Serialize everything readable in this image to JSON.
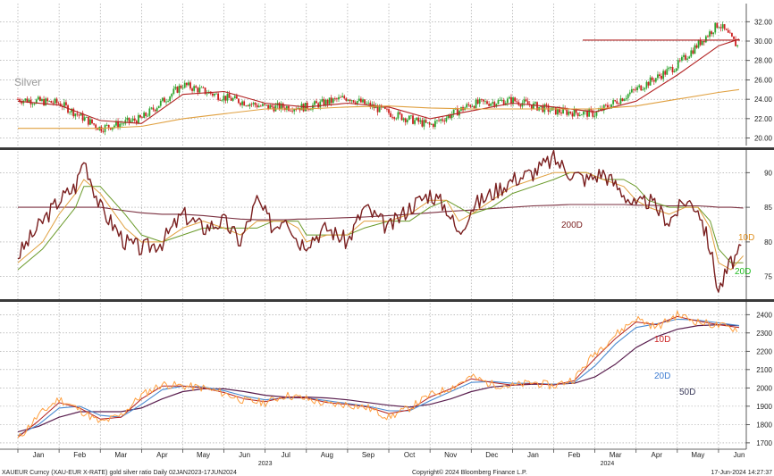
{
  "footer": {
    "left": "XAUEUR Curncy (XAU-EUR X-RATE) gold silver ratio  Daily 02JAN2023-17JUN2024",
    "center": "Copyright© 2024 Bloomberg Finance L.P.",
    "right": "17-Jun-2024 14:27:37"
  },
  "x_axis": {
    "months": [
      "Jan",
      "Feb",
      "Mar",
      "Apr",
      "May",
      "Jun",
      "Jul",
      "Aug",
      "Sep",
      "Oct",
      "Nov",
      "Dec",
      "Jan",
      "Feb",
      "Mar",
      "Apr",
      "May",
      "Jun"
    ],
    "years": [
      "2023",
      "2024"
    ]
  },
  "chart_data": [
    {
      "type": "candlestick",
      "panel": "top",
      "title": "Silver",
      "ylim": [
        19.5,
        33.5
      ],
      "y_ticks": [
        20,
        22,
        24,
        26,
        28,
        30,
        32
      ],
      "y_tick_labels": [
        "20.00",
        "22.00",
        "24.00",
        "26.00",
        "28.00",
        "30.00",
        "32.00"
      ],
      "x_months": [
        0,
        1,
        2,
        3,
        4,
        5,
        6,
        7,
        8,
        9,
        10,
        11,
        12,
        13,
        14,
        15,
        16,
        17,
        17.5
      ],
      "close": [
        24.0,
        23.6,
        21.0,
        22.0,
        25.5,
        24.2,
        23.2,
        23.2,
        24.2,
        22.6,
        21.3,
        23.5,
        23.9,
        22.8,
        22.5,
        25.0,
        27.5,
        31.8,
        29.3
      ],
      "horizontal_line": 30.1,
      "series": [
        {
          "values": [
            23.8,
            23.4,
            21.8,
            21.5,
            24.5,
            24.8,
            23.6,
            23.2,
            23.6,
            23.2,
            22.0,
            22.8,
            23.6,
            23.2,
            22.7,
            23.8,
            26.5,
            29.5,
            30.2
          ]
        },
        {
          "values": [
            21.0,
            21.0,
            21.0,
            21.2,
            22.0,
            22.5,
            23.0,
            23.0,
            23.2,
            23.3,
            23.1,
            23.0,
            23.0,
            23.0,
            23.0,
            23.3,
            24.0,
            24.7,
            25.0
          ]
        }
      ]
    },
    {
      "type": "line",
      "panel": "middle",
      "ylim": [
        72,
        93
      ],
      "y_ticks": [
        75,
        80,
        85,
        90
      ],
      "x_months": [
        0,
        0.6,
        1.0,
        1.4,
        1.6,
        2.0,
        2.6,
        3.0,
        3.5,
        4.0,
        4.5,
        5.0,
        5.4,
        5.8,
        6.2,
        6.5,
        6.8,
        7.0,
        7.5,
        8.0,
        8.4,
        9.0,
        9.5,
        10.0,
        10.4,
        10.7,
        11.0,
        11.5,
        12.0,
        12.5,
        13.0,
        13.4,
        13.8,
        14.2,
        14.7,
        15.0,
        15.3,
        15.8,
        16.2,
        16.5,
        16.8,
        17.0,
        17.3,
        17.6
      ],
      "ratio": [
        78,
        83,
        86,
        88,
        92,
        85,
        80,
        79,
        80,
        84,
        82,
        83,
        80,
        86,
        82,
        84,
        80,
        80,
        82,
        80,
        85,
        82,
        85,
        87,
        85,
        81,
        85,
        87,
        89,
        90,
        92,
        90,
        89,
        90,
        87,
        85,
        86,
        83,
        86,
        85,
        79,
        73,
        77,
        79
      ],
      "annotations": [
        "200D",
        "10D",
        "20D"
      ],
      "series": [
        {
          "name": "200D",
          "values": [
            85,
            85,
            85,
            85,
            85,
            85,
            84.5,
            84.2,
            84,
            84,
            83.8,
            83.5,
            83.3,
            83.2,
            83.2,
            83.2,
            83.3,
            83.3,
            83.4,
            83.5,
            83.6,
            83.8,
            84,
            84.2,
            84.4,
            84.5,
            84.6,
            84.8,
            85,
            85.2,
            85.3,
            85.4,
            85.4,
            85.4,
            85.4,
            85.3,
            85.3,
            85.2,
            85.2,
            85.2,
            85.1,
            85.0,
            85.0,
            84.9
          ]
        },
        {
          "name": "10D",
          "values": [
            77,
            80,
            84,
            87,
            89,
            87,
            82,
            80,
            80,
            82,
            83,
            82,
            81,
            83,
            83,
            83,
            82,
            80,
            81,
            81,
            83,
            83,
            84,
            86,
            86,
            83,
            84,
            86,
            88,
            89,
            90,
            90,
            90,
            89,
            88,
            86,
            85,
            84,
            85,
            85,
            82,
            77,
            76,
            78
          ]
        },
        {
          "name": "20D",
          "values": [
            76,
            79,
            82,
            85,
            88,
            88,
            84,
            81,
            80,
            81,
            82,
            82,
            82,
            82,
            83,
            83,
            83,
            81,
            81,
            81,
            82,
            83,
            83,
            85,
            86,
            85,
            84,
            85,
            87,
            88,
            89,
            90,
            90,
            89,
            89,
            88,
            86,
            85,
            85,
            85,
            83,
            79,
            77,
            77
          ]
        }
      ]
    },
    {
      "type": "line",
      "panel": "bottom",
      "ylim": [
        1680,
        2460
      ],
      "y_ticks": [
        1700,
        1800,
        1900,
        2000,
        2100,
        2200,
        2300,
        2400
      ],
      "x_months": [
        0,
        0.5,
        1.0,
        1.5,
        2.0,
        2.5,
        3.0,
        3.5,
        4.0,
        4.5,
        5.0,
        5.5,
        6.0,
        6.5,
        7.0,
        7.5,
        8.0,
        8.5,
        9.0,
        9.5,
        10.0,
        10.5,
        11.0,
        11.5,
        12.0,
        12.5,
        13.0,
        13.5,
        14.0,
        14.5,
        15.0,
        15.5,
        16.0,
        16.5,
        17.0,
        17.5
      ],
      "price": [
        1720,
        1850,
        1940,
        1880,
        1810,
        1850,
        1960,
        2020,
        2010,
        2000,
        1970,
        1930,
        1920,
        1960,
        1940,
        1910,
        1910,
        1890,
        1840,
        1890,
        1960,
        2000,
        2060,
        2020,
        2010,
        2030,
        2010,
        2050,
        2190,
        2290,
        2380,
        2330,
        2400,
        2360,
        2340,
        2320
      ],
      "annotations": [
        "10D",
        "20D",
        "50D"
      ],
      "series": [
        {
          "name": "10D",
          "values": [
            1730,
            1820,
            1920,
            1890,
            1830,
            1840,
            1940,
            2010,
            2010,
            2000,
            1975,
            1940,
            1925,
            1950,
            1945,
            1920,
            1910,
            1895,
            1860,
            1880,
            1950,
            1995,
            2050,
            2030,
            2015,
            2025,
            2015,
            2040,
            2160,
            2270,
            2360,
            2345,
            2390,
            2365,
            2345,
            2330
          ]
        },
        {
          "name": "20D",
          "values": [
            1740,
            1800,
            1890,
            1900,
            1850,
            1840,
            1910,
            1990,
            2010,
            2005,
            1985,
            1955,
            1935,
            1945,
            1945,
            1930,
            1915,
            1900,
            1875,
            1875,
            1930,
            1980,
            2030,
            2035,
            2025,
            2025,
            2020,
            2030,
            2120,
            2240,
            2330,
            2350,
            2375,
            2370,
            2355,
            2340
          ]
        },
        {
          "name": "50D",
          "values": [
            1760,
            1790,
            1840,
            1870,
            1870,
            1870,
            1890,
            1940,
            1980,
            1995,
            1995,
            1980,
            1960,
            1950,
            1950,
            1945,
            1935,
            1920,
            1905,
            1895,
            1910,
            1940,
            1980,
            2005,
            2015,
            2020,
            2020,
            2025,
            2060,
            2130,
            2220,
            2280,
            2320,
            2340,
            2345,
            2340
          ]
        }
      ]
    }
  ],
  "colors": {
    "grid": "#9a9a9a",
    "divider": "#3a3a3a",
    "candle_up": "#2ea52e",
    "candle_down": "#cc1f1f",
    "ma_red": "#b22222",
    "ma_orange": "#e0a040",
    "ratio_line": "#7a1f1f",
    "ma_green": "#6a9a2a",
    "ma_200d": "#7a2f3f",
    "price_orange": "#ffa040",
    "ma_blue": "#4a8ad0",
    "ma_dark": "#5a1f4f",
    "title_silver": "#9a9a9a",
    "label_red": "#cc2222",
    "label_green": "#22bb22",
    "label_orange": "#e09020",
    "label_blue": "#3a7ad0",
    "label_dark": "#3a3a5a"
  }
}
